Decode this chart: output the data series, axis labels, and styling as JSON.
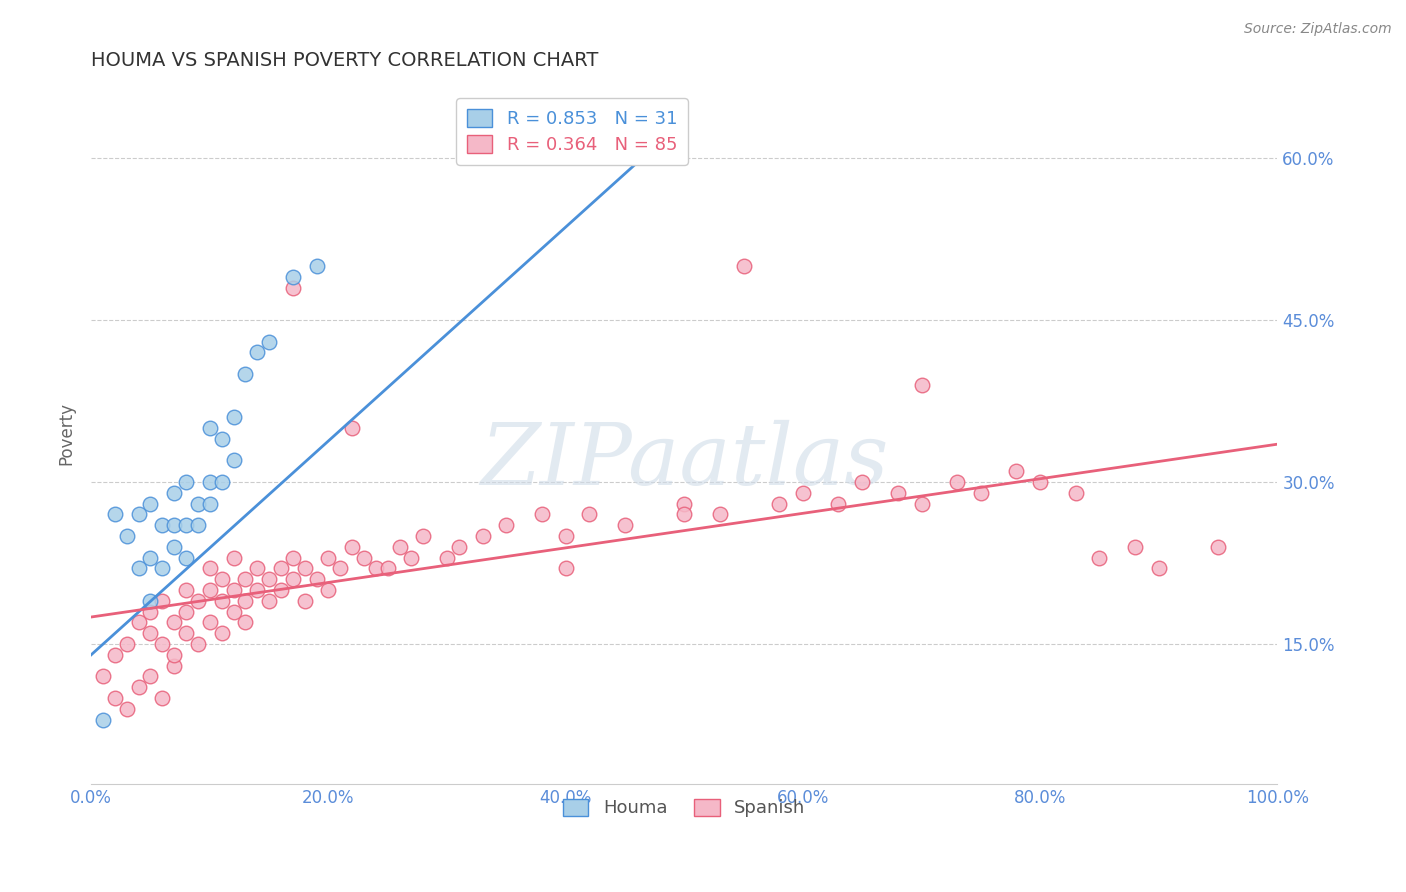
{
  "title": "HOUMA VS SPANISH POVERTY CORRELATION CHART",
  "ylabel": "Poverty",
  "source_text": "Source: ZipAtlas.com",
  "xlim": [
    0.0,
    1.0
  ],
  "ylim": [
    0.02,
    0.67
  ],
  "xtick_labels": [
    "0.0%",
    "20.0%",
    "40.0%",
    "60.0%",
    "80.0%",
    "100.0%"
  ],
  "ytick_labels": [
    "15.0%",
    "30.0%",
    "45.0%",
    "60.0%"
  ],
  "ytick_values": [
    0.15,
    0.3,
    0.45,
    0.6
  ],
  "xtick_values": [
    0.0,
    0.2,
    0.4,
    0.6,
    0.8,
    1.0
  ],
  "houma_color": "#a8cfe8",
  "spanish_color": "#f5b8c8",
  "houma_line_color": "#4a90d9",
  "spanish_line_color": "#e8607a",
  "houma_R": 0.853,
  "houma_N": 31,
  "spanish_R": 0.364,
  "spanish_N": 85,
  "legend_label_houma": "Houma",
  "legend_label_spanish": "Spanish",
  "axis_color": "#5b8dd9",
  "houma_x": [
    0.01,
    0.02,
    0.03,
    0.04,
    0.04,
    0.05,
    0.05,
    0.05,
    0.06,
    0.06,
    0.07,
    0.07,
    0.07,
    0.08,
    0.08,
    0.08,
    0.09,
    0.09,
    0.1,
    0.1,
    0.1,
    0.11,
    0.11,
    0.12,
    0.12,
    0.13,
    0.14,
    0.15,
    0.17,
    0.19,
    0.48
  ],
  "houma_y": [
    0.08,
    0.27,
    0.25,
    0.22,
    0.27,
    0.19,
    0.23,
    0.28,
    0.22,
    0.26,
    0.24,
    0.26,
    0.29,
    0.23,
    0.26,
    0.3,
    0.26,
    0.28,
    0.28,
    0.3,
    0.35,
    0.3,
    0.34,
    0.32,
    0.36,
    0.4,
    0.42,
    0.43,
    0.49,
    0.5,
    0.62
  ],
  "spanish_x": [
    0.01,
    0.02,
    0.02,
    0.03,
    0.03,
    0.04,
    0.04,
    0.05,
    0.05,
    0.05,
    0.06,
    0.06,
    0.06,
    0.07,
    0.07,
    0.07,
    0.08,
    0.08,
    0.08,
    0.09,
    0.09,
    0.1,
    0.1,
    0.1,
    0.11,
    0.11,
    0.11,
    0.12,
    0.12,
    0.12,
    0.13,
    0.13,
    0.13,
    0.14,
    0.14,
    0.15,
    0.15,
    0.16,
    0.16,
    0.17,
    0.17,
    0.18,
    0.18,
    0.19,
    0.2,
    0.2,
    0.21,
    0.22,
    0.23,
    0.24,
    0.25,
    0.26,
    0.27,
    0.28,
    0.3,
    0.31,
    0.33,
    0.35,
    0.38,
    0.4,
    0.42,
    0.45,
    0.5,
    0.53,
    0.55,
    0.58,
    0.6,
    0.63,
    0.65,
    0.68,
    0.7,
    0.73,
    0.75,
    0.78,
    0.8,
    0.83,
    0.85,
    0.88,
    0.9,
    0.95,
    0.17,
    0.22,
    0.4,
    0.5,
    0.7
  ],
  "spanish_y": [
    0.12,
    0.1,
    0.14,
    0.09,
    0.15,
    0.11,
    0.17,
    0.12,
    0.16,
    0.18,
    0.1,
    0.15,
    0.19,
    0.13,
    0.17,
    0.14,
    0.16,
    0.2,
    0.18,
    0.15,
    0.19,
    0.17,
    0.2,
    0.22,
    0.16,
    0.19,
    0.21,
    0.18,
    0.2,
    0.23,
    0.17,
    0.21,
    0.19,
    0.2,
    0.22,
    0.19,
    0.21,
    0.2,
    0.22,
    0.21,
    0.23,
    0.19,
    0.22,
    0.21,
    0.2,
    0.23,
    0.22,
    0.24,
    0.23,
    0.22,
    0.22,
    0.24,
    0.23,
    0.25,
    0.23,
    0.24,
    0.25,
    0.26,
    0.27,
    0.25,
    0.27,
    0.26,
    0.28,
    0.27,
    0.5,
    0.28,
    0.29,
    0.28,
    0.3,
    0.29,
    0.28,
    0.3,
    0.29,
    0.31,
    0.3,
    0.29,
    0.23,
    0.24,
    0.22,
    0.24,
    0.48,
    0.35,
    0.22,
    0.27,
    0.39
  ],
  "houma_line_x0": 0.0,
  "houma_line_y0": 0.14,
  "houma_line_x1": 0.5,
  "houma_line_y1": 0.635,
  "spanish_line_x0": 0.0,
  "spanish_line_y0": 0.175,
  "spanish_line_x1": 1.0,
  "spanish_line_y1": 0.335
}
